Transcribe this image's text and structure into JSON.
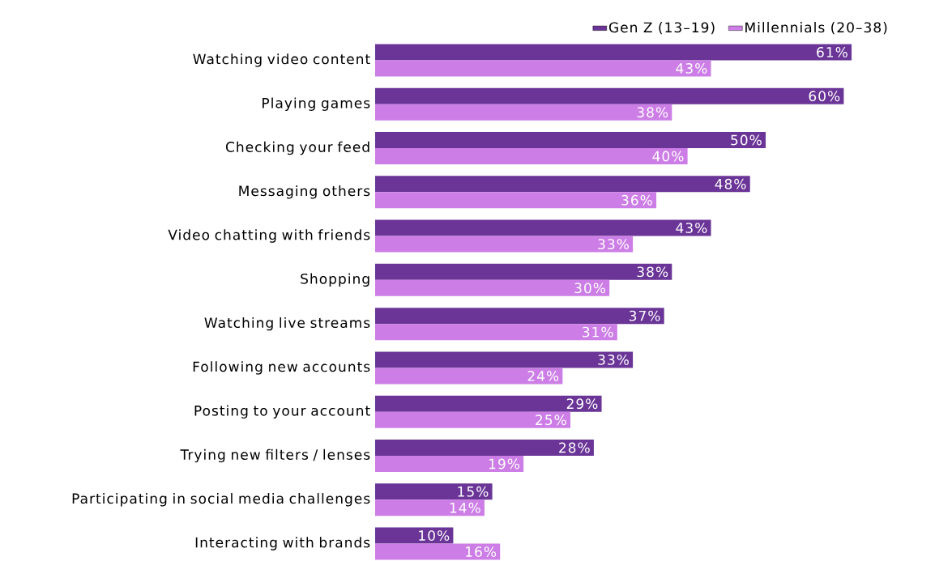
{
  "chart_data": {
    "type": "bar",
    "orientation": "horizontal",
    "legend": "top right",
    "categories": [
      "Watching video content",
      "Playing games",
      "Checking your feed",
      "Messaging others",
      "Video chatting with friends",
      "Shopping",
      "Watching live streams",
      "Following new accounts",
      "Posting to your account",
      "Trying new filters / lenses",
      "Participating in social media challenges",
      "Interacting with brands"
    ],
    "series": [
      {
        "name": "Gen Z (13–19)",
        "color": "#6a3597",
        "values": [
          61,
          60,
          50,
          48,
          43,
          38,
          37,
          33,
          29,
          28,
          15,
          10
        ],
        "value_labels": [
          "61%",
          "60%",
          "50%",
          "48%",
          "43%",
          "38%",
          "37%",
          "33%",
          "29%",
          "28%",
          "15%",
          "10%"
        ]
      },
      {
        "name": "Millennials (20–38)",
        "color": "#cc7ee6",
        "values": [
          43,
          38,
          40,
          36,
          33,
          30,
          31,
          24,
          25,
          19,
          14,
          16
        ],
        "value_labels": [
          "43%",
          "38%",
          "40%",
          "36%",
          "33%",
          "30%",
          "31%",
          "24%",
          "25%",
          "19%",
          "14%",
          "16%"
        ]
      }
    ]
  }
}
